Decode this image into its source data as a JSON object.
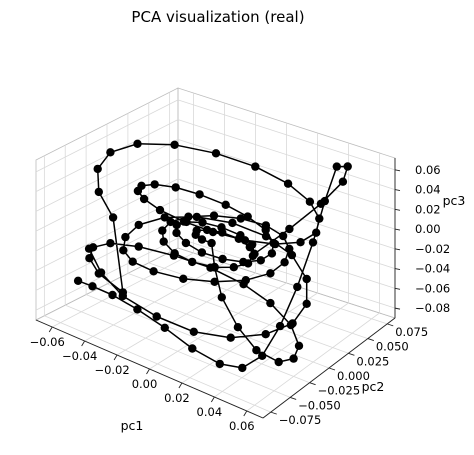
{
  "chart_data": {
    "type": "line",
    "title": "PCA visualization (real)",
    "xlabel": "pc1",
    "ylabel": "pc2",
    "zlabel": "pc3",
    "x_ticks": [
      "−0.06",
      "−0.04",
      "−0.02",
      "0.00",
      "0.02",
      "0.04",
      "0.06"
    ],
    "y_ticks": [
      "−0.075",
      "−0.050",
      "−0.025",
      "0.000",
      "0.025",
      "0.050",
      "0.075"
    ],
    "z_ticks": [
      "−0.08",
      "−0.06",
      "−0.04",
      "−0.02",
      "0.00",
      "0.02",
      "0.04",
      "0.06"
    ],
    "projection": "3d",
    "grid": true,
    "legend": "none",
    "marker": "circle",
    "line_color": "#000000",
    "trajectory": [
      [
        -0.05,
        -0.06,
        -0.015
      ],
      [
        -0.04,
        -0.065,
        -0.03
      ],
      [
        -0.025,
        -0.068,
        -0.042
      ],
      [
        -0.005,
        -0.066,
        -0.05
      ],
      [
        0.015,
        -0.06,
        -0.055
      ],
      [
        0.032,
        -0.048,
        -0.056
      ],
      [
        0.045,
        -0.03,
        -0.054
      ],
      [
        0.052,
        -0.01,
        -0.05
      ],
      [
        0.05,
        0.012,
        -0.044
      ],
      [
        0.04,
        0.032,
        -0.036
      ],
      [
        0.024,
        0.045,
        -0.028
      ],
      [
        0.005,
        0.05,
        -0.022
      ],
      [
        -0.015,
        0.047,
        -0.018
      ],
      [
        -0.032,
        0.036,
        -0.016
      ],
      [
        -0.044,
        0.02,
        -0.016
      ],
      [
        -0.05,
        0.0,
        -0.018
      ],
      [
        -0.048,
        -0.02,
        -0.02
      ],
      [
        -0.04,
        -0.038,
        -0.02
      ],
      [
        -0.028,
        -0.05,
        -0.018
      ],
      [
        -0.012,
        -0.056,
        -0.014
      ],
      [
        0.006,
        -0.055,
        -0.01
      ],
      [
        0.022,
        -0.048,
        -0.006
      ],
      [
        0.035,
        -0.035,
        -0.003
      ],
      [
        0.042,
        -0.018,
        -0.001
      ],
      [
        0.042,
        0.0,
        0.0
      ],
      [
        0.036,
        0.018,
        0.0
      ],
      [
        0.025,
        0.032,
        -0.001
      ],
      [
        0.01,
        0.04,
        -0.003
      ],
      [
        -0.006,
        0.04,
        -0.005
      ],
      [
        -0.02,
        0.034,
        -0.007
      ],
      [
        -0.03,
        0.022,
        -0.008
      ],
      [
        -0.034,
        0.008,
        -0.009
      ],
      [
        -0.032,
        -0.006,
        -0.01
      ],
      [
        -0.025,
        -0.018,
        -0.011
      ],
      [
        -0.014,
        -0.026,
        -0.012
      ],
      [
        -0.002,
        -0.028,
        -0.012
      ],
      [
        0.01,
        -0.024,
        -0.012
      ],
      [
        0.018,
        -0.016,
        -0.011
      ],
      [
        0.022,
        -0.006,
        -0.01
      ],
      [
        0.02,
        0.004,
        -0.009
      ],
      [
        0.014,
        0.012,
        -0.008
      ],
      [
        0.005,
        0.016,
        -0.007
      ],
      [
        -0.005,
        0.015,
        -0.006
      ],
      [
        -0.012,
        0.01,
        -0.005
      ],
      [
        -0.015,
        0.003,
        -0.004
      ],
      [
        -0.012,
        -0.004,
        -0.003
      ],
      [
        -0.006,
        -0.008,
        -0.002
      ],
      [
        0.0,
        -0.008,
        -0.002
      ],
      [
        0.008,
        -0.02,
        -0.015
      ],
      [
        0.02,
        -0.035,
        -0.03
      ],
      [
        0.035,
        -0.045,
        -0.045
      ],
      [
        0.048,
        -0.048,
        -0.058
      ],
      [
        0.058,
        -0.04,
        -0.068
      ],
      [
        0.06,
        -0.025,
        -0.072
      ],
      [
        0.055,
        -0.008,
        -0.072
      ],
      [
        0.042,
        0.008,
        -0.068
      ],
      [
        0.024,
        0.018,
        -0.062
      ],
      [
        0.005,
        0.022,
        -0.056
      ],
      [
        -0.015,
        0.02,
        -0.05
      ],
      [
        -0.034,
        0.012,
        -0.045
      ],
      [
        -0.05,
        0.0,
        -0.04
      ],
      [
        -0.06,
        -0.015,
        -0.036
      ],
      [
        -0.062,
        -0.032,
        -0.034
      ],
      [
        -0.056,
        -0.048,
        -0.034
      ],
      [
        -0.044,
        -0.06,
        -0.036
      ],
      [
        -0.026,
        -0.066,
        -0.04
      ],
      [
        -0.03,
        -0.07,
        0.035
      ],
      [
        -0.045,
        -0.058,
        0.045
      ],
      [
        -0.056,
        -0.038,
        0.052
      ],
      [
        -0.06,
        -0.015,
        0.056
      ],
      [
        -0.056,
        0.01,
        0.056
      ],
      [
        -0.044,
        0.032,
        0.052
      ],
      [
        -0.026,
        0.048,
        0.046
      ],
      [
        -0.005,
        0.056,
        0.04
      ],
      [
        0.016,
        0.056,
        0.034
      ],
      [
        0.034,
        0.048,
        0.03
      ],
      [
        0.047,
        0.034,
        0.028
      ],
      [
        0.054,
        0.016,
        0.028
      ],
      [
        0.054,
        -0.004,
        0.03
      ],
      [
        0.047,
        -0.022,
        0.034
      ],
      [
        0.035,
        -0.036,
        0.038
      ],
      [
        0.02,
        -0.046,
        0.042
      ],
      [
        0.004,
        -0.05,
        0.044
      ],
      [
        -0.012,
        -0.048,
        0.044
      ],
      [
        -0.026,
        -0.04,
        0.042
      ],
      [
        -0.036,
        -0.028,
        0.038
      ],
      [
        -0.042,
        -0.012,
        0.032
      ],
      [
        -0.042,
        0.004,
        0.026
      ],
      [
        -0.036,
        0.018,
        0.02
      ],
      [
        -0.026,
        0.028,
        0.014
      ],
      [
        -0.012,
        0.033,
        0.009
      ],
      [
        0.002,
        0.033,
        0.005
      ],
      [
        0.016,
        0.028,
        0.002
      ],
      [
        0.026,
        0.018,
        0.0
      ],
      [
        0.031,
        0.006,
        -0.001
      ],
      [
        0.03,
        -0.006,
        -0.002
      ],
      [
        0.024,
        -0.016,
        -0.002
      ],
      [
        0.014,
        -0.022,
        -0.002
      ],
      [
        0.002,
        -0.024,
        -0.002
      ],
      [
        -0.01,
        -0.02,
        -0.002
      ],
      [
        -0.02,
        -0.012,
        -0.002
      ],
      [
        -0.025,
        -0.002,
        -0.002
      ],
      [
        -0.024,
        0.008,
        -0.003
      ],
      [
        -0.018,
        0.016,
        -0.004
      ],
      [
        -0.008,
        0.02,
        -0.005
      ],
      [
        0.004,
        0.02,
        -0.006
      ],
      [
        0.014,
        0.015,
        -0.007
      ],
      [
        0.02,
        0.006,
        -0.008
      ],
      [
        0.03,
        0.03,
        0.01
      ],
      [
        0.04,
        0.05,
        0.03
      ],
      [
        0.045,
        0.068,
        0.045
      ],
      [
        0.042,
        0.08,
        0.052
      ],
      [
        0.036,
        0.078,
        0.05
      ],
      [
        0.04,
        0.055,
        0.03
      ],
      [
        0.045,
        0.03,
        0.005
      ],
      [
        0.05,
        0.0,
        -0.02
      ],
      [
        0.054,
        -0.03,
        -0.04
      ],
      [
        0.055,
        -0.055,
        -0.055
      ],
      [
        0.05,
        -0.07,
        -0.062
      ],
      [
        0.038,
        -0.074,
        -0.064
      ],
      [
        0.02,
        -0.072,
        -0.062
      ],
      [
        0.0,
        -0.066,
        -0.058
      ],
      [
        -0.02,
        -0.06,
        -0.056
      ],
      [
        -0.038,
        -0.055,
        -0.056
      ],
      [
        -0.052,
        -0.052,
        -0.058
      ],
      [
        -0.062,
        -0.05,
        -0.06
      ]
    ]
  }
}
